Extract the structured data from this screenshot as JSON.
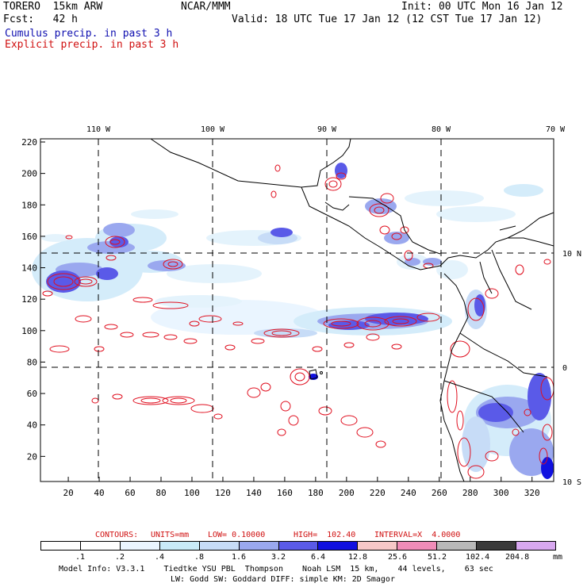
{
  "header": {
    "model": "TORERO  15km ARW",
    "org": "NCAR/MMM",
    "init": "Init: 00 UTC Mon 16 Jan 12",
    "fcst": "Fcst:   42 h",
    "valid": "Valid: 18 UTC Tue 17 Jan 12 (12 CST Tue 17 Jan 12)",
    "field_cumulus": "Cumulus precip. in past 3 h",
    "field_explicit": "Explicit precip. in past 3 h"
  },
  "map": {
    "lon_labels": [
      "110 W",
      "100 W",
      "90 W",
      "80 W",
      "70 W"
    ],
    "lat_labels": [
      "10 N",
      "0",
      "10 S"
    ],
    "y_ticks": [
      "220",
      "200",
      "180",
      "160",
      "140",
      "120",
      "100",
      "80",
      "60",
      "40",
      "20"
    ],
    "x_ticks": [
      "20",
      "40",
      "60",
      "80",
      "100",
      "120",
      "140",
      "160",
      "180",
      "200",
      "220",
      "240",
      "260",
      "280",
      "300",
      "320"
    ],
    "colors": {
      "coast": "#000000",
      "explicit": "#e01020",
      "grid": "#000000"
    }
  },
  "contours_line": {
    "label": "CONTOURS:",
    "units": "UNITS=mm",
    "low": "LOW= 0.10000",
    "high": "HIGH=  102.40",
    "interval": "INTERVAL=X  4.0000"
  },
  "legend": {
    "labels": [
      ".1",
      ".2",
      ".4",
      ".8",
      "1.6",
      "3.2",
      "6.4",
      "12.8",
      "25.6",
      "51.2",
      "102.4",
      "204.8"
    ],
    "unit": "mm",
    "colors": [
      "#ffffff",
      "#ffffff",
      "#eaf5ff",
      "#c9ebf8",
      "#c7dcf7",
      "#9aa8ef",
      "#5a5ae8",
      "#1010e0",
      "#f6c8c8",
      "#f08cb8",
      "#b8b8b8",
      "#3a3a3a",
      "#d8a8f0"
    ]
  },
  "footer": {
    "line1": "Model Info: V3.3.1    Tiedtke YSU PBL  Thompson    Noah LSM  15 km,    44 levels,    63 sec",
    "line2": "LW: Godd SW: Goddard DIFF: simple KM: 2D Smagor"
  }
}
